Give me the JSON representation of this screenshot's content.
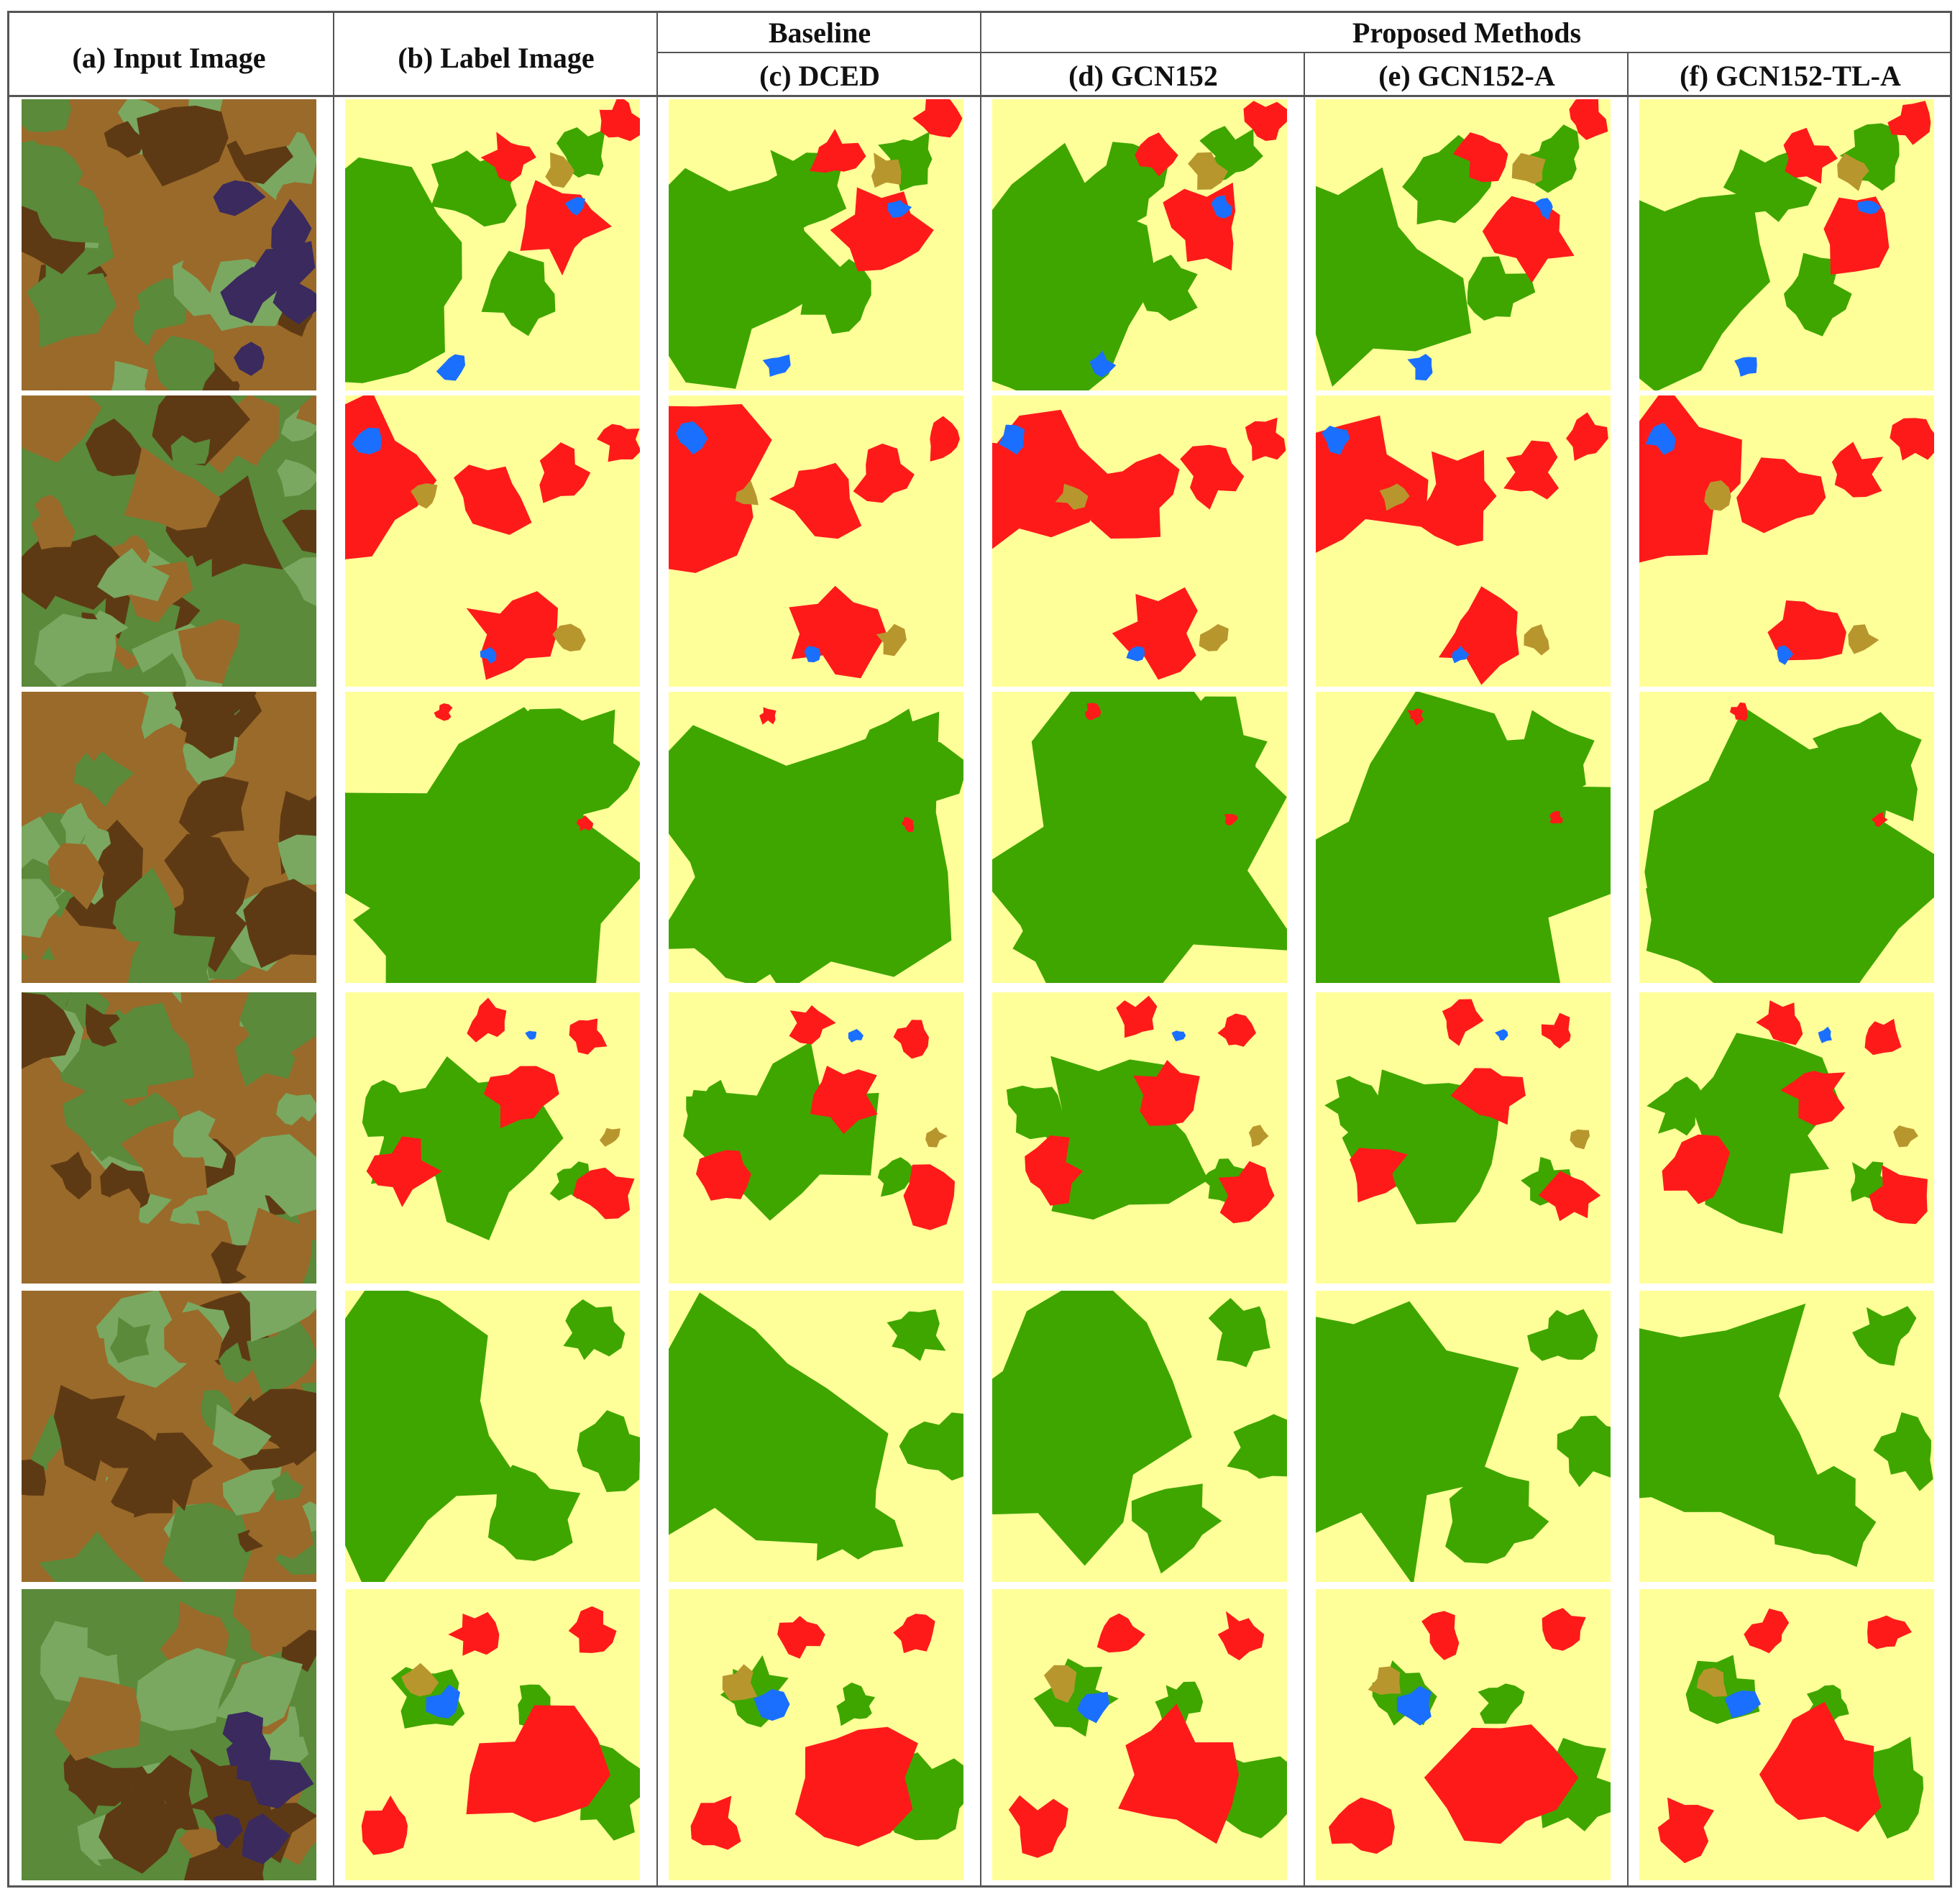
{
  "figure": {
    "group_headers": {
      "baseline": "Baseline",
      "proposed": "Proposed Methods"
    },
    "columns": [
      {
        "id": "input",
        "label": "(a)  Input Image",
        "kind": "satellite"
      },
      {
        "id": "label",
        "label": "(b)  Label Image",
        "kind": "map"
      },
      {
        "id": "dced",
        "label": "(c)  DCED",
        "kind": "map"
      },
      {
        "id": "gcn152",
        "label": "(d)  GCN152",
        "kind": "map"
      },
      {
        "id": "gcn152a",
        "label": "(e)  GCN152-A",
        "kind": "map"
      },
      {
        "id": "gcn152tla",
        "label": "(f)  GCN152-TL-A",
        "kind": "map"
      }
    ],
    "rows": 6,
    "class_colors": {
      "agriculture": "#ffff99",
      "forest": "#3fa600",
      "urban": "#ff1a1a",
      "water": "#1a6fff",
      "misc": "#b8962e"
    },
    "satellite_colors": {
      "brown": "#9a6a2a",
      "dark_brown": "#5e3a14",
      "green": "#5a8a3a",
      "purple": "#3a2a5e",
      "light_green": "#7aa860"
    }
  }
}
